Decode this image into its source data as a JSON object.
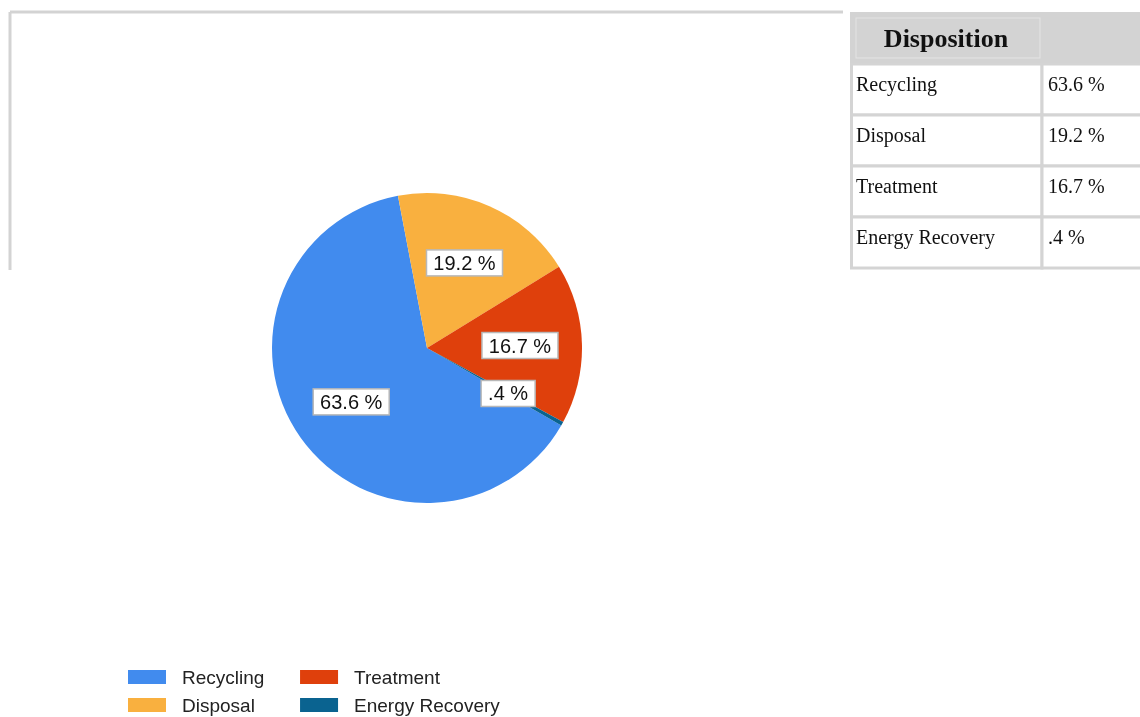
{
  "chart_data": {
    "type": "pie",
    "title": "Disposition",
    "categories": [
      "Recycling",
      "Disposal",
      "Treatment",
      "Energy Recovery"
    ],
    "values": [
      63.6,
      19.2,
      16.7,
      0.4
    ],
    "colors": [
      "#418bee",
      "#f9b03f",
      "#df400c",
      "#0a6390"
    ],
    "value_labels": [
      "63.6 %",
      "19.2 %",
      "16.7 %",
      ".4 %"
    ],
    "legend": "bottom"
  }
}
